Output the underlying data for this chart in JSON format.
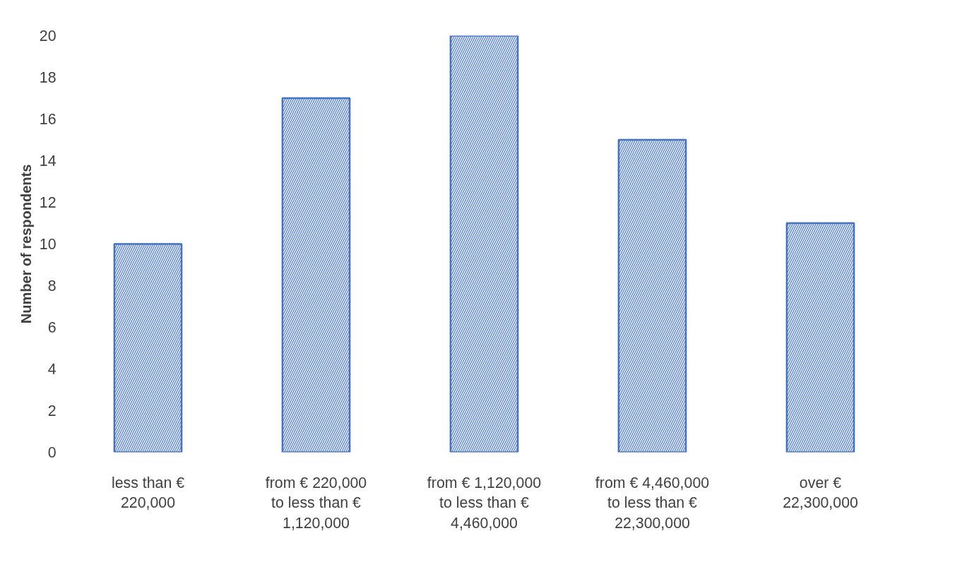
{
  "chart_data": {
    "type": "bar",
    "ylabel": "Number of respondents",
    "categories": [
      "less than € 220,000",
      "from € 220,000 to less than € 1,120,000",
      "from € 1,120,000 to less than € 4,460,000",
      "from € 4,460,000 to less than € 22,300,000",
      "over € 22,300,000"
    ],
    "values": [
      10,
      17,
      20,
      15,
      11
    ],
    "color": "#4472c4",
    "ylim": [
      0,
      20
    ],
    "yticks": [
      0,
      2,
      4,
      6,
      8,
      10,
      12,
      14,
      16,
      18,
      20
    ],
    "grid": false
  }
}
